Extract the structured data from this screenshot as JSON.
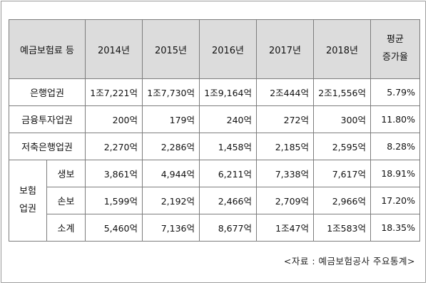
{
  "header": {
    "category": "예금보험료 등",
    "years": [
      "2014년",
      "2015년",
      "2016년",
      "2017년",
      "2018년"
    ],
    "growth_line1": "평균",
    "growth_line2": "증가율"
  },
  "rows": [
    {
      "label": "은행업권",
      "values": [
        "1조7,221억",
        "1조7,730억",
        "1조9,164억",
        "2조444억",
        "2조1,556억"
      ],
      "growth": "5.79%"
    },
    {
      "label": "금융투자업권",
      "values": [
        "200억",
        "179억",
        "240억",
        "272억",
        "300억"
      ],
      "growth": "11.80%"
    },
    {
      "label": "저축은행업권",
      "values": [
        "2,270억",
        "2,286억",
        "1,458억",
        "2,185억",
        "2,595억"
      ],
      "growth": "8.28%"
    }
  ],
  "insurance": {
    "label_line1": "보험",
    "label_line2": "업권",
    "rows": [
      {
        "label": "생보",
        "values": [
          "3,861억",
          "4,944억",
          "6,211억",
          "7,338억",
          "7,617억"
        ],
        "growth": "18.91%"
      },
      {
        "label": "손보",
        "values": [
          "1,599억",
          "2,192억",
          "2,466억",
          "2,709억",
          "2,966억"
        ],
        "growth": "17.20%"
      },
      {
        "label": "소계",
        "values": [
          "5,460억",
          "7,136억",
          "8,677억",
          "1조47억",
          "1조583억"
        ],
        "growth": "18.35%"
      }
    ]
  },
  "source": "<자료 : 예금보험공사 주요통계>"
}
